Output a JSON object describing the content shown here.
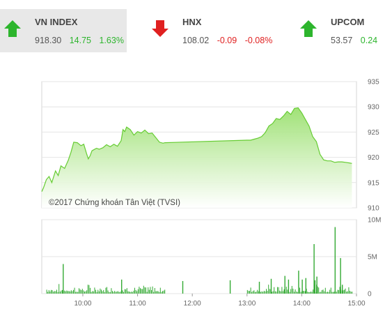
{
  "tickers": [
    {
      "name": "VN INDEX",
      "value": "918.30",
      "change": "14.75",
      "percent": "1.63%",
      "direction": "up"
    },
    {
      "name": "HNX",
      "value": "108.02",
      "change": "-0.09",
      "percent": "-0.08%",
      "direction": "down"
    },
    {
      "name": "UPCOM",
      "value": "53.57",
      "change": "0.24",
      "percent": "",
      "direction": "up"
    }
  ],
  "colors": {
    "up": "#2db52d",
    "down": "#e02020",
    "line": "#66cc33",
    "fill": "#b8ec94",
    "volume": "#33aa33"
  },
  "copyright": "©2017 Chứng khoán Tân Việt (TVSI)",
  "chart_data": [
    {
      "type": "area",
      "x_ticks": [
        "10:00",
        "11:00",
        "12:00",
        "13:00",
        "14:00",
        "15:00"
      ],
      "y_ticks": [
        "935",
        "930",
        "925",
        "920",
        "915",
        "910"
      ],
      "ylim": [
        910,
        935
      ],
      "xlim": [
        "09:15",
        "15:00"
      ],
      "grid": true,
      "series": [
        {
          "x": [
            "09:15",
            "09:17",
            "09:20",
            "09:23",
            "09:26",
            "09:30",
            "09:33",
            "09:36",
            "09:40",
            "09:44",
            "09:47",
            "09:50",
            "09:54",
            "09:58",
            "10:01",
            "10:04",
            "10:06",
            "10:08",
            "10:10",
            "10:12",
            "10:15",
            "10:18",
            "10:22",
            "10:26",
            "10:30",
            "10:34",
            "10:38",
            "10:42",
            "10:44",
            "10:46",
            "10:48",
            "10:52",
            "10:56",
            "11:00",
            "11:04",
            "11:08",
            "11:12",
            "11:16",
            "11:20",
            "11:24",
            "11:28",
            "11:30",
            "13:00",
            "13:04",
            "13:08",
            "13:12",
            "13:16",
            "13:20",
            "13:24",
            "13:28",
            "13:32",
            "13:36",
            "13:40",
            "13:44",
            "13:48",
            "13:52",
            "13:56",
            "14:00",
            "14:04",
            "14:08",
            "14:12",
            "14:16",
            "14:20",
            "14:24",
            "14:28",
            "14:32",
            "14:36",
            "14:40",
            "14:44",
            "14:48",
            "14:52",
            "14:55"
          ],
          "values": [
            913.2,
            914.0,
            915.6,
            916.2,
            915.0,
            917.3,
            916.4,
            918.3,
            917.8,
            919.4,
            921.0,
            923.0,
            922.9,
            922.3,
            922.6,
            920.8,
            919.7,
            920.3,
            921.3,
            921.5,
            921.8,
            921.6,
            921.9,
            922.5,
            922.1,
            922.6,
            922.2,
            923.3,
            925.5,
            925.1,
            926.0,
            925.5,
            924.4,
            925.1,
            924.8,
            925.4,
            924.7,
            924.8,
            923.9,
            923.0,
            922.8,
            922.9,
            923.4,
            923.4,
            923.6,
            923.8,
            924.1,
            924.9,
            926.2,
            926.7,
            927.7,
            927.5,
            928.2,
            929.1,
            928.5,
            929.7,
            929.8,
            928.8,
            927.5,
            926.2,
            924.1,
            923.1,
            920.6,
            919.5,
            919.3,
            919.3,
            919.0,
            919.1,
            919.1,
            919.0,
            918.9,
            918.8
          ]
        }
      ]
    },
    {
      "type": "bar",
      "y_ticks": [
        "10M",
        "5M",
        "0"
      ],
      "ylim": [
        0,
        10
      ],
      "unit": "M",
      "series": [
        {
          "x": [
            "09:38",
            "10:42",
            "11:49",
            "12:41",
            "13:13",
            "13:26",
            "13:41",
            "13:45",
            "13:56",
            "14:00",
            "14:04",
            "14:13",
            "14:14",
            "14:16",
            "14:36",
            "14:42",
            "14:44"
          ],
          "values": [
            4.0,
            1.9,
            1.7,
            1.8,
            1.6,
            2.0,
            2.4,
            1.9,
            3.1,
            1.9,
            2.1,
            6.7,
            1.8,
            2.3,
            9.0,
            4.8,
            1.2
          ]
        }
      ]
    }
  ]
}
